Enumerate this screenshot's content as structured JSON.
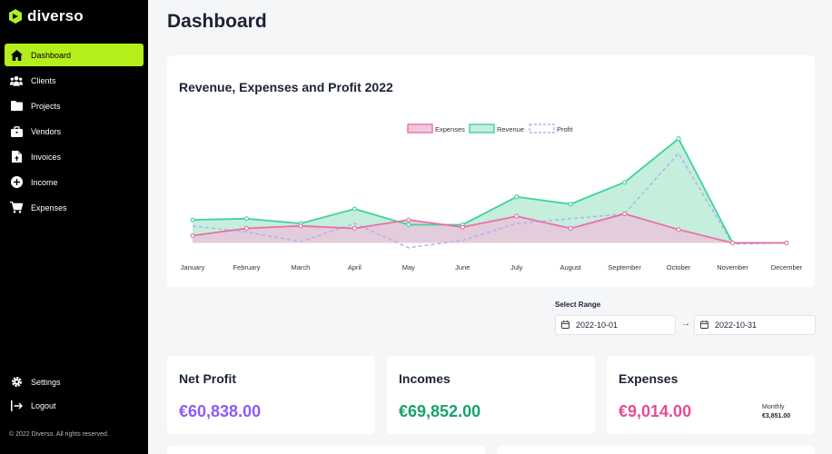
{
  "app": {
    "name": "diverso"
  },
  "sidebar": {
    "items": [
      {
        "label": "Dashboard",
        "icon": "home-icon",
        "active": true
      },
      {
        "label": "Clients",
        "icon": "users-icon"
      },
      {
        "label": "Projects",
        "icon": "folder-icon"
      },
      {
        "label": "Vendors",
        "icon": "briefcase-icon"
      },
      {
        "label": "Invoices",
        "icon": "invoice-icon"
      },
      {
        "label": "Income",
        "icon": "plus-circle-icon"
      },
      {
        "label": "Expenses",
        "icon": "cart-icon"
      }
    ],
    "bottom_items": [
      {
        "label": "Settings",
        "icon": "gear-icon"
      },
      {
        "label": "Logout",
        "icon": "logout-icon"
      }
    ],
    "copyright": "© 2022 Diverso. All rights reserved."
  },
  "header": {
    "title": "Dashboard"
  },
  "chart": {
    "title": "Revenue, Expenses and Profit 2022"
  },
  "chart_data": {
    "type": "area",
    "title": "Revenue, Expenses and Profit 2022",
    "categories": [
      "January",
      "February",
      "March",
      "April",
      "May",
      "June",
      "July",
      "August",
      "September",
      "October",
      "November",
      "December"
    ],
    "series": [
      {
        "name": "Expenses",
        "color": "#ea6fa7",
        "values": [
          3,
          6,
          7,
          6,
          9.5,
          6.5,
          11,
          6,
          12,
          5.5,
          0,
          0
        ]
      },
      {
        "name": "Revenue",
        "color": "#3dd598",
        "values": [
          9.5,
          10,
          8,
          14,
          7.5,
          7.5,
          19,
          16,
          25,
          43,
          0,
          0
        ]
      },
      {
        "name": "Profit",
        "color": "#b7b0f0",
        "dashed": true,
        "values": [
          7,
          4.5,
          0.5,
          8,
          -2,
          1,
          8,
          10,
          12,
          37,
          -0.5,
          0
        ]
      }
    ],
    "legend": "top-center",
    "grid": false
  },
  "range": {
    "label": "Select Range",
    "from": "2022-10-01",
    "to": "2022-10-31"
  },
  "stats": {
    "net": {
      "title": "Net Profit",
      "value": "€60,838.00",
      "color": "#8b5cf6"
    },
    "income": {
      "title": "Incomes",
      "value": "€69,852.00",
      "color": "#16a36a"
    },
    "expenses": {
      "title": "Expenses",
      "value": "€9,014.00",
      "color": "#e44d95",
      "monthly_label": "Monthly",
      "monthly_value": "€3,851.00"
    }
  }
}
